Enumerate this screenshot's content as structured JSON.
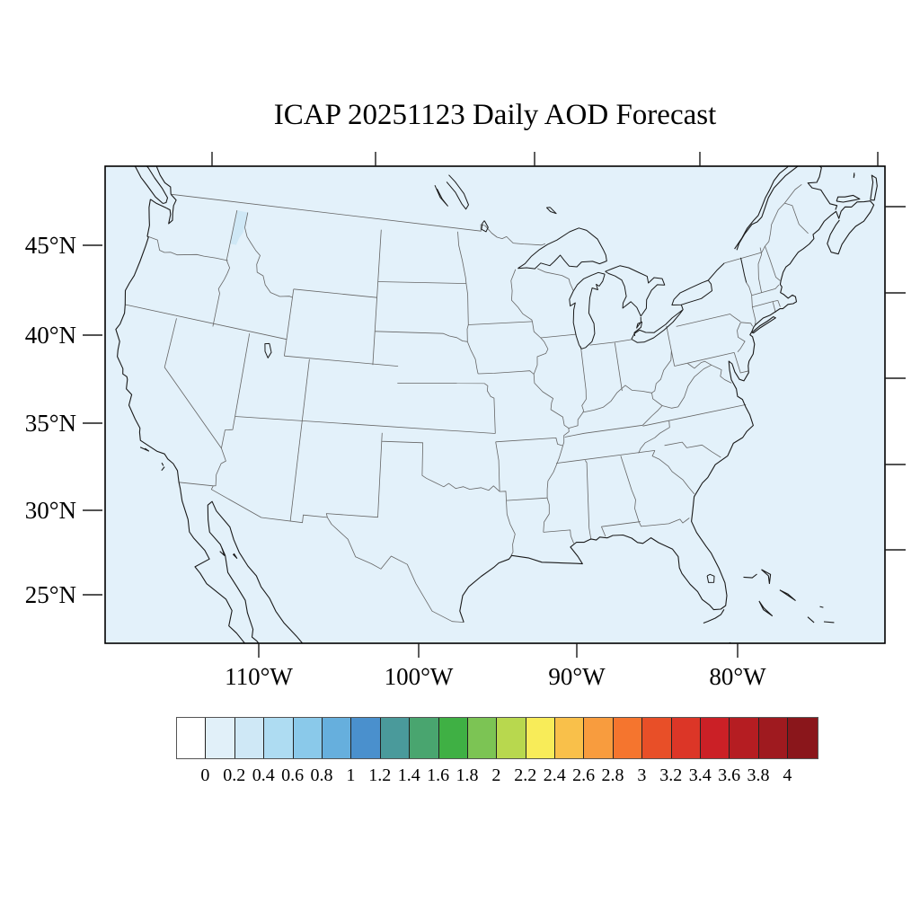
{
  "title": "ICAP 20251123 Daily AOD Forecast",
  "axes": {
    "lat_tick_labels": [
      "45°N",
      "40°N",
      "35°N",
      "30°N",
      "25°N"
    ],
    "lon_tick_labels": [
      "110°W",
      "100°W",
      "90°W",
      "80°W"
    ]
  },
  "colorbar": {
    "tick_labels": [
      "0",
      "0.2",
      "0.4",
      "0.6",
      "0.8",
      "1",
      "1.2",
      "1.4",
      "1.6",
      "1.8",
      "2",
      "2.2",
      "2.4",
      "2.6",
      "2.8",
      "3",
      "3.2",
      "3.4",
      "3.6",
      "3.8",
      "4"
    ],
    "colors": [
      "#ffffff",
      "#e1f0f9",
      "#cfe8f6",
      "#aedcf2",
      "#8ac9ea",
      "#66afdd",
      "#4a90cd",
      "#4a9a9b",
      "#49a56f",
      "#3fb044",
      "#7cc454",
      "#b8d84e",
      "#f8ec59",
      "#f9c04a",
      "#f89c3e",
      "#f5752e",
      "#e84f28",
      "#dc3627",
      "#cb2026",
      "#b51d22",
      "#9f1a1f",
      "#8a161b"
    ],
    "min": 0,
    "max": 4,
    "step": 0.2
  },
  "map_style": {
    "fill_color": "#e3f1fa",
    "patch_color": "#cfe8f6",
    "coast_color": "#1a1a1a",
    "state_color": "#666666",
    "frame_color": "#000000"
  },
  "chart_data": {
    "type": "heatmap",
    "title": "ICAP 20251123 Daily AOD Forecast",
    "geography": "Continental United States, Lambert conformal projection",
    "x_tick_labels": [
      "110°W",
      "100°W",
      "90°W",
      "80°W"
    ],
    "y_tick_labels": [
      "45°N",
      "40°N",
      "35°N",
      "30°N",
      "25°N"
    ],
    "colorbar_range": [
      0,
      4
    ],
    "colorbar_interval": 0.2,
    "field_summary": [
      {
        "region": "entire visible domain (land and ocean)",
        "aod_value": "0.0-0.2"
      },
      {
        "region": "Idaho panhandle strip (~46.7-49N, 117-116W)",
        "aod_value": "0.2-0.4"
      }
    ]
  }
}
